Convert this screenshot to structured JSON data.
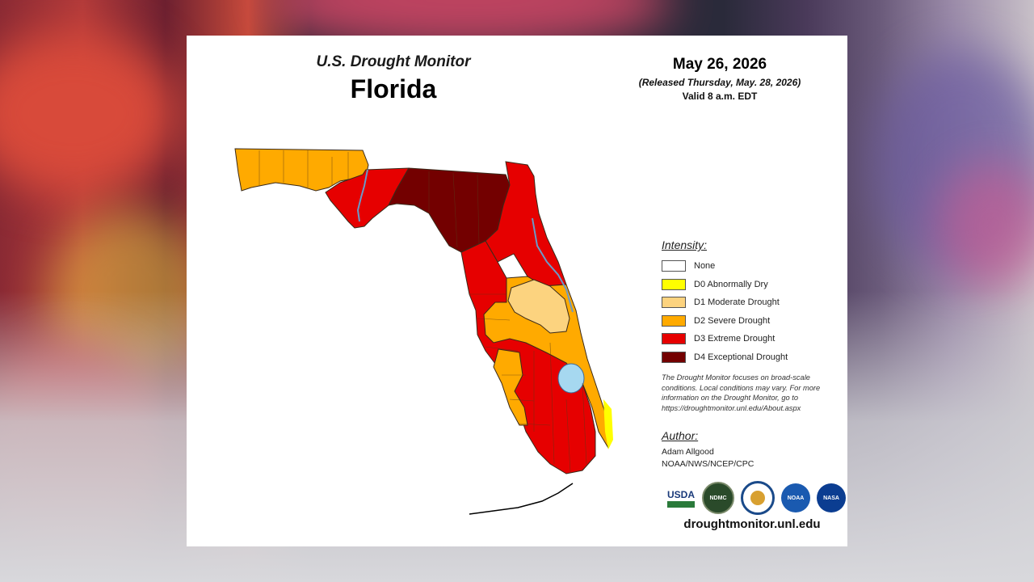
{
  "header": {
    "program_title": "U.S. Drought Monitor",
    "state_title": "Florida",
    "date": "May 26, 2026",
    "released": "(Released Thursday, May. 28, 2026)",
    "valid": "Valid 8 a.m. EDT"
  },
  "legend": {
    "heading": "Intensity:",
    "items": [
      {
        "label": "None",
        "color": "#ffffff"
      },
      {
        "label": "D0 Abnormally Dry",
        "color": "#ffff00"
      },
      {
        "label": "D1 Moderate Drought",
        "color": "#fcd37f"
      },
      {
        "label": "D2 Severe Drought",
        "color": "#ffaa00"
      },
      {
        "label": "D3 Extreme Drought",
        "color": "#e60000"
      },
      {
        "label": "D4 Exceptional Drought",
        "color": "#730000"
      }
    ]
  },
  "note": "The Drought Monitor focuses on broad-scale conditions. Local conditions may vary. For more information on the Drought Monitor, go to https://droughtmonitor.unl.edu/About.aspx",
  "author": {
    "heading": "Author:",
    "name": "Adam Allgood",
    "organization": "NOAA/NWS/NCEP/CPC"
  },
  "logos": [
    {
      "name": "usda-logo",
      "text": "USDA"
    },
    {
      "name": "ndmc-logo",
      "text": "NDMC"
    },
    {
      "name": "doi-seal",
      "text": ""
    },
    {
      "name": "noaa-logo",
      "text": "NOAA"
    },
    {
      "name": "nasa-logo",
      "text": "NASA"
    }
  ],
  "website": "droughtmonitor.unl.edu",
  "colors": {
    "water": "#a6d8f0",
    "county_lines": "#5a3a1a"
  }
}
